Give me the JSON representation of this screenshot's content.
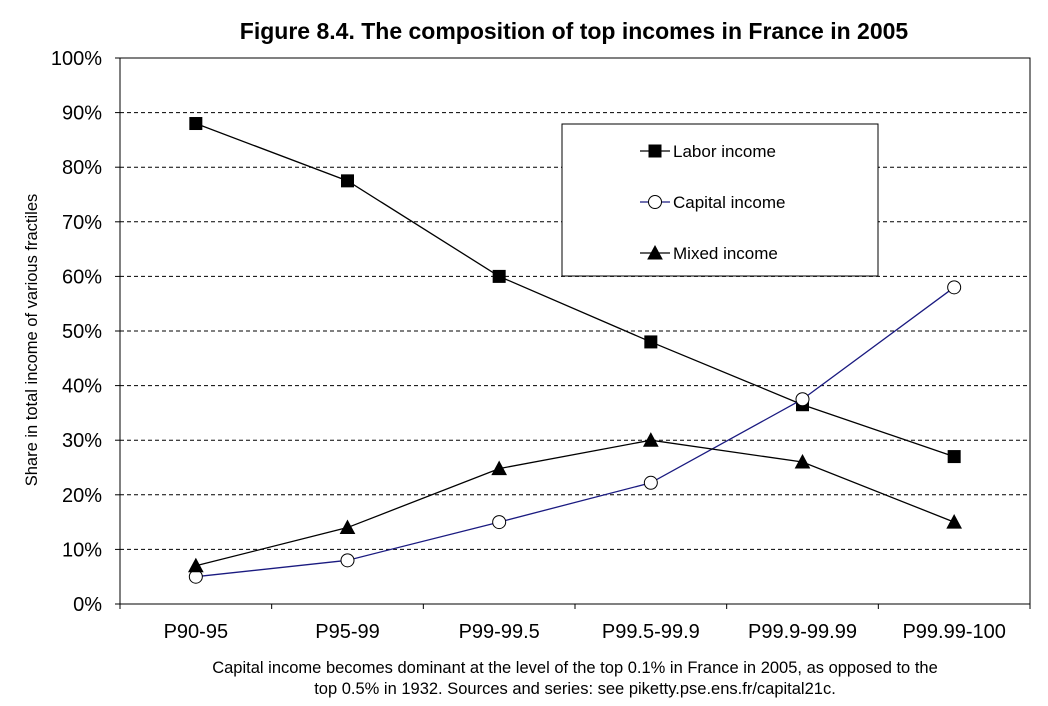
{
  "caption": {
    "line1": "Capital income becomes dominant at the level of the top 0.1% in France in 2005, as opposed to the",
    "line2": "top 0.5% in 1932. Sources and series: see piketty.pse.ens.fr/capital21c."
  },
  "chart_data": {
    "type": "line",
    "title": "Figure 8.4. The composition of top incomes in France in 2005",
    "xlabel": "",
    "ylabel": "Share in total income of various fractiles",
    "categories": [
      "P90-95",
      "P95-99",
      "P99-99.5",
      "P99.5-99.9",
      "P99.9-99.99",
      "P99.99-100"
    ],
    "yticks": [
      "0%",
      "10%",
      "20%",
      "30%",
      "40%",
      "50%",
      "60%",
      "70%",
      "80%",
      "90%",
      "100%"
    ],
    "ylim": [
      0,
      100
    ],
    "grid": "horizontal-dashed",
    "legend_position": "top-right",
    "series": [
      {
        "name": "Labor income",
        "marker": "square",
        "color": "#000000",
        "values": [
          88,
          77.5,
          60,
          48,
          36.5,
          27
        ]
      },
      {
        "name": "Capital income",
        "marker": "circle",
        "color": "#1a1a80",
        "values": [
          5,
          8,
          15,
          22.2,
          37.5,
          58
        ]
      },
      {
        "name": "Mixed income",
        "marker": "triangle",
        "color": "#000000",
        "values": [
          7,
          14,
          24.8,
          30,
          26,
          15
        ]
      }
    ]
  }
}
